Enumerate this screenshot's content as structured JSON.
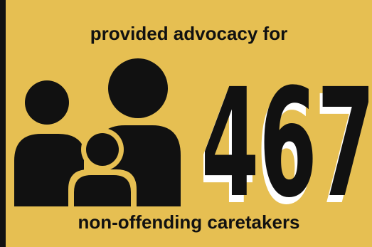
{
  "headline": "provided advocacy for",
  "count": "467",
  "footline": "non-offending caretakers",
  "icon": "family-icon",
  "colors": {
    "background": "#e6bf52",
    "foreground": "#111111",
    "shadow": "#ffffff"
  }
}
